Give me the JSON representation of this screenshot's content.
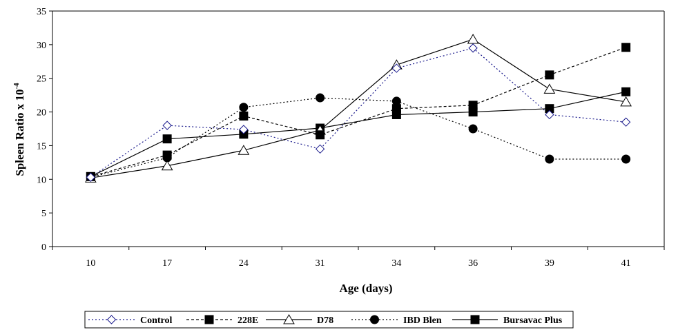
{
  "chart_data": {
    "type": "line",
    "title": "",
    "xlabel": "Age (days)",
    "ylabel_main": "Spleen Ratio x 10",
    "ylabel_sup": "-4",
    "categories": [
      "10",
      "17",
      "24",
      "31",
      "34",
      "36",
      "39",
      "41"
    ],
    "ylim": [
      0,
      35
    ],
    "yticks": [
      0,
      5,
      10,
      15,
      20,
      25,
      30,
      35
    ],
    "grid": false,
    "legend_position": "bottom",
    "series": [
      {
        "name": "Control",
        "marker": "diamond-open",
        "dash": "dotted",
        "color": "#1a1a8c",
        "values": [
          10.3,
          18.0,
          17.4,
          14.5,
          26.5,
          29.5,
          19.6,
          18.5
        ]
      },
      {
        "name": "228E",
        "marker": "square",
        "dash": "dashed",
        "color": "#000000",
        "values": [
          10.4,
          13.6,
          19.4,
          16.6,
          20.5,
          21.0,
          25.5,
          29.6
        ]
      },
      {
        "name": "D78",
        "marker": "triangle-open",
        "dash": "solid",
        "color": "#000000",
        "values": [
          10.2,
          12.0,
          14.3,
          17.3,
          27.0,
          30.8,
          23.4,
          21.5
        ]
      },
      {
        "name": "IBD Blen",
        "marker": "circle",
        "dash": "dotted",
        "color": "#000000",
        "values": [
          10.3,
          13.2,
          20.7,
          22.1,
          21.6,
          17.5,
          13.0,
          13.0
        ]
      },
      {
        "name": "Bursavac Plus",
        "marker": "square",
        "dash": "solid",
        "color": "#000000",
        "values": [
          10.4,
          16.0,
          16.7,
          17.6,
          19.6,
          20.0,
          20.5,
          23.0
        ]
      }
    ]
  }
}
